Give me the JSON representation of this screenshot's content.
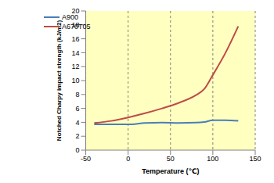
{
  "chart_data": {
    "type": "line",
    "x_label": "Temperature (℃)",
    "y_label": "Notched Charpy impact strength (kJ/m2)",
    "x": [
      -40,
      -20,
      0,
      20,
      40,
      60,
      80,
      90,
      100,
      115,
      130
    ],
    "series": [
      {
        "name": "A900",
        "color": "#4a7ebb",
        "values": [
          3.7,
          3.7,
          3.7,
          3.9,
          3.95,
          3.9,
          3.95,
          4.05,
          4.3,
          4.3,
          4.2
        ]
      },
      {
        "name": "A670T05",
        "color": "#be4b48",
        "values": [
          3.9,
          4.2,
          4.7,
          5.3,
          6.0,
          6.8,
          7.9,
          8.8,
          10.8,
          14.0,
          17.8
        ]
      }
    ],
    "xlim": [
      -50,
      150
    ],
    "xticks": [
      -50,
      0,
      50,
      100,
      150
    ],
    "ylim": [
      0,
      20
    ],
    "yticks": [
      0,
      2,
      4,
      6,
      8,
      10,
      12,
      14,
      16,
      18,
      20
    ],
    "grid": true,
    "legend": "upper left"
  }
}
